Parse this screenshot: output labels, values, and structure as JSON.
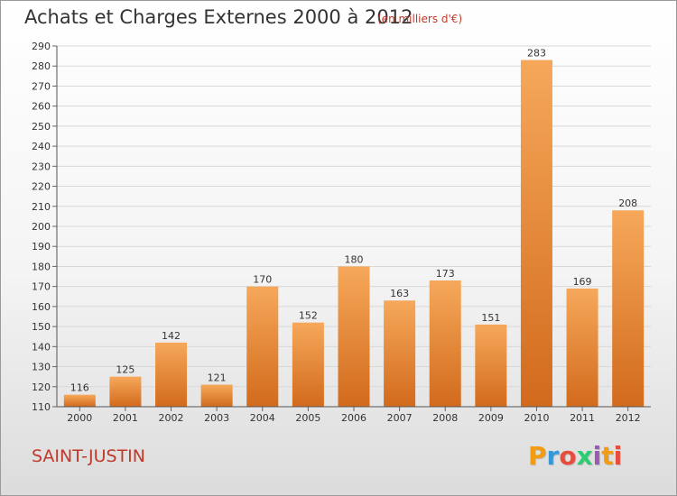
{
  "header": {
    "title": "Achats et Charges Externes 2000 à 2012",
    "subtitle": "(en milliers d'€)"
  },
  "footer": {
    "commune": "SAINT-JUSTIN",
    "logo_text": "Proxiti",
    "logo_colors": [
      "#f39c12",
      "#3498db",
      "#e74c3c",
      "#2ecc71",
      "#9b59b6",
      "#f39c12",
      "#e74c3c"
    ]
  },
  "colors": {
    "bar_light": "#f6a85a",
    "bar_dark": "#d26a1c",
    "grid": "#d8d8d8",
    "axis_text": "#333333"
  },
  "chart_data": {
    "type": "bar",
    "categories": [
      "2000",
      "2001",
      "2002",
      "2003",
      "2004",
      "2005",
      "2006",
      "2007",
      "2008",
      "2009",
      "2010",
      "2011",
      "2012"
    ],
    "values": [
      116,
      125,
      142,
      121,
      170,
      152,
      180,
      163,
      173,
      151,
      283,
      169,
      208
    ],
    "title": "Achats et Charges Externes 2000 à 2012",
    "ylim": [
      110,
      290
    ],
    "yticks": [
      110,
      120,
      130,
      140,
      150,
      160,
      170,
      180,
      190,
      200,
      210,
      220,
      230,
      240,
      250,
      260,
      270,
      280,
      290
    ],
    "grid": true
  }
}
